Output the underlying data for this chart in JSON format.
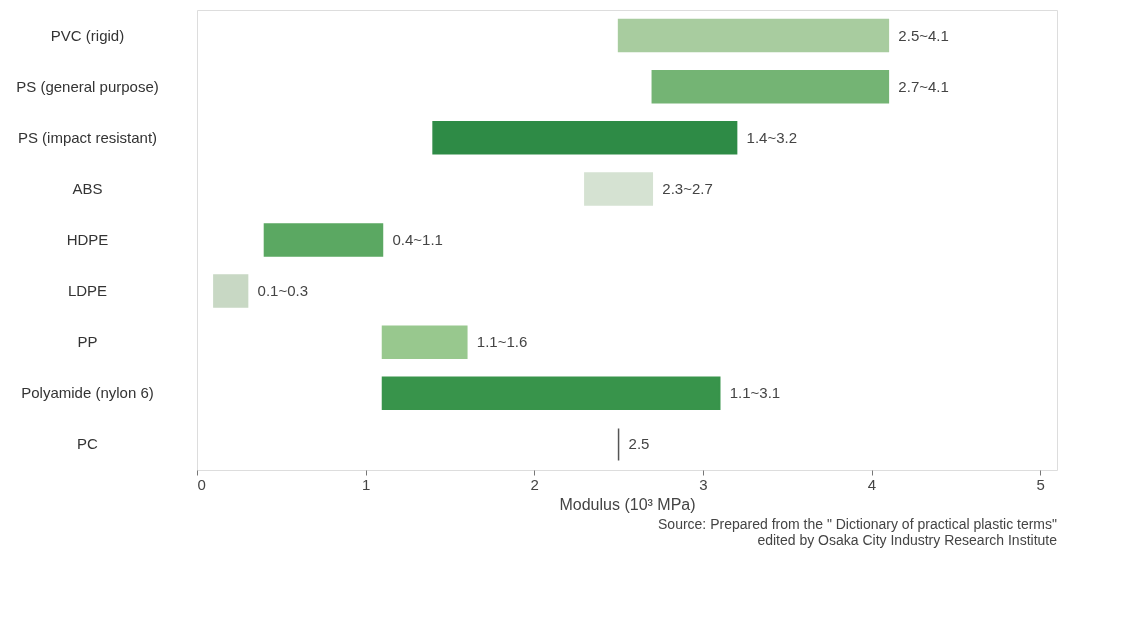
{
  "chart_data": {
    "type": "bar",
    "orientation": "horizontal",
    "categories": [
      "PVC (rigid)",
      "PS (general purpose)",
      "PS (impact resistant)",
      "ABS",
      "HDPE",
      "LDPE",
      "PP",
      "Polyamide (nylon 6)",
      "PC"
    ],
    "base": [
      2.5,
      2.7,
      1.4,
      2.3,
      0.4,
      0.1,
      1.1,
      1.1,
      2.5
    ],
    "values": [
      1.6,
      1.4,
      1.8,
      0.4,
      0.7,
      0.2,
      0.5,
      2.0,
      0
    ],
    "colors": [
      "#a8cc9f",
      "#74b474",
      "#2e8b46",
      "#d5e2d2",
      "#5ba862",
      "#c8d8c4",
      "#98c88e",
      "#38944b",
      "#555555"
    ],
    "xlabel": "Modulus (10³ MPa)",
    "xlim": [
      0,
      5.1
    ],
    "xticks": [
      0,
      1,
      2,
      3,
      4,
      5
    ],
    "grid": false,
    "annotations": [
      {
        "text": "2.5~4.1",
        "x": 4.1,
        "y": "PVC (rigid)"
      },
      {
        "text": "2.7~4.1",
        "x": 4.1,
        "y": "PS (general purpose)"
      },
      {
        "text": "1.4~3.2",
        "x": 3.2,
        "y": "PS (impact resistant)"
      },
      {
        "text": "2.3~2.7",
        "x": 2.7,
        "y": "ABS"
      },
      {
        "text": "0.4~1.1",
        "x": 1.1,
        "y": "HDPE"
      },
      {
        "text": "0.1~0.3",
        "x": 0.3,
        "y": "LDPE"
      },
      {
        "text": "1.1~1.6",
        "x": 1.6,
        "y": "PP"
      },
      {
        "text": "1.1~3.1",
        "x": 3.1,
        "y": "Polyamide (nylon 6)"
      },
      {
        "text": "2.5",
        "x": 2.5,
        "y": "PC"
      },
      "Source: Prepared from the \" Dictionary of practical plastic terms\"",
      "edited by Osaka City Industry Research Institute"
    ]
  }
}
